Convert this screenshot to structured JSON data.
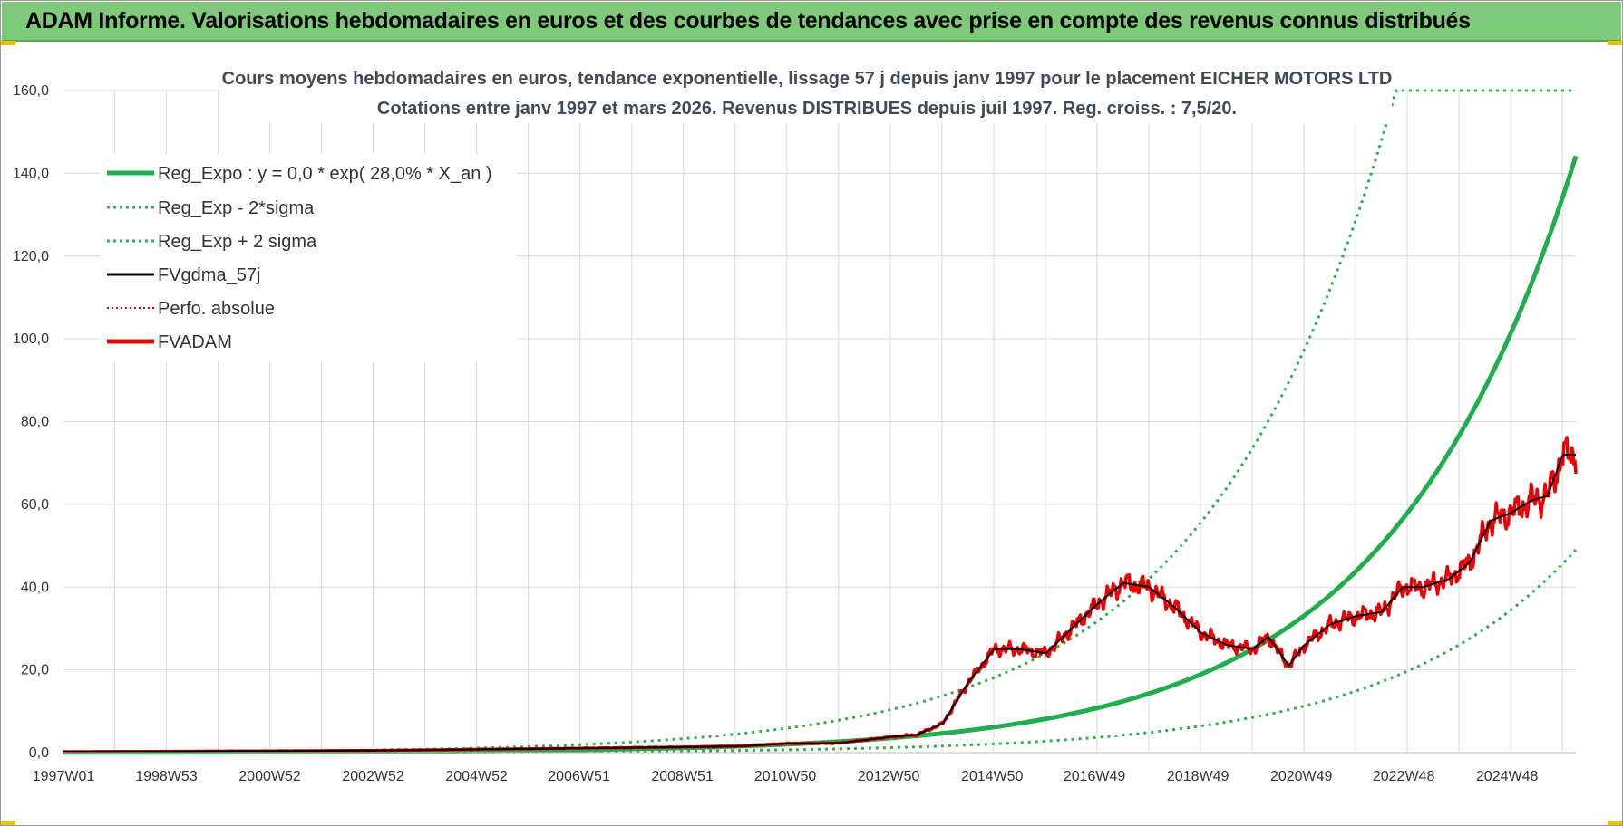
{
  "banner": {
    "title": "ADAM Informe. Valorisations hebdomadaires en euros et des courbes de tendances avec prise en compte des revenus connus distribués"
  },
  "colors": {
    "banner_bg": "#7fc97b",
    "reg_expo": "#1fae4b",
    "reg_band": "#2fae4f",
    "fvgdma": "#000000",
    "perfo": "#e00000",
    "fvadam": "#ee0000",
    "grid": "#d9d9d9"
  },
  "chart_data": {
    "type": "line",
    "title": "Cours moyens hebdomadaires en euros, tendance exponentielle, lissage 57 j depuis janv 1997 pour le placement EICHER MOTORS LTD",
    "subtitle": "Cotations entre janv 1997 et mars 2026. Revenus DISTRIBUES depuis juil 1997. Reg. croiss. : 7,5/20.",
    "xlabel": "",
    "ylabel": "",
    "ylim": [
      0,
      160
    ],
    "xlim": [
      1997.0,
      2026.25
    ],
    "y_ticks": [
      "0,0",
      "20,0",
      "40,0",
      "60,0",
      "80,0",
      "100,0",
      "120,0",
      "140,0",
      "160,0"
    ],
    "y_tick_values": [
      0,
      20,
      40,
      60,
      80,
      100,
      120,
      140,
      160
    ],
    "x_ticks": [
      "1997W01",
      "1998W53",
      "2000W52",
      "2002W52",
      "2004W52",
      "2006W51",
      "2008W51",
      "2010W50",
      "2012W50",
      "2014W50",
      "2016W49",
      "2018W49",
      "2020W49",
      "2022W48",
      "2024W48"
    ],
    "x_tick_values": [
      1997.0,
      1998.99,
      2000.99,
      2002.99,
      2004.99,
      2006.97,
      2008.97,
      2010.96,
      2012.96,
      2014.96,
      2016.94,
      2018.94,
      2020.94,
      2022.92,
      2024.92
    ],
    "legend": [
      {
        "key": "reg_expo",
        "label": "Reg_Expo : y = 0,0 * exp( 28,0% *  X_an )"
      },
      {
        "key": "reg_minus",
        "label": "Reg_Exp - 2*sigma"
      },
      {
        "key": "reg_plus",
        "label": "Reg_Exp + 2 sigma"
      },
      {
        "key": "fvgdma",
        "label": "FVgdma_57j"
      },
      {
        "key": "perfo",
        "label": "Perfo. absolue"
      },
      {
        "key": "fvadam",
        "label": "FVADAM"
      }
    ],
    "trend": {
      "a": 0.04,
      "rate": 0.28,
      "t0": 1997.0,
      "plus_factor": 2.94,
      "minus_factor": 0.34
    },
    "series_anchor_points": {
      "x": [
        1997.0,
        2003.0,
        2008.0,
        2010.0,
        2011.0,
        2012.0,
        2013.0,
        2013.5,
        2014.0,
        2014.5,
        2015.0,
        2015.5,
        2016.0,
        2016.5,
        2017.0,
        2017.5,
        2018.0,
        2018.5,
        2019.0,
        2019.5,
        2020.0,
        2020.3,
        2020.7,
        2021.0,
        2021.5,
        2022.0,
        2022.5,
        2022.9,
        2023.3,
        2023.8,
        2024.2,
        2024.6,
        2025.0,
        2025.4,
        2025.7,
        2026.0,
        2026.25
      ],
      "y": [
        0.2,
        0.5,
        1.2,
        1.5,
        2.2,
        2.3,
        3.8,
        4.3,
        7.0,
        17.0,
        25.0,
        25.0,
        24.0,
        30.0,
        36.0,
        41.0,
        40.0,
        35.0,
        29.0,
        26.0,
        25.0,
        28.0,
        21.0,
        26.0,
        31.0,
        33.0,
        34.0,
        40.0,
        40.0,
        42.0,
        46.0,
        56.0,
        58.0,
        61.0,
        62.0,
        72.0,
        72.0
      ]
    }
  }
}
